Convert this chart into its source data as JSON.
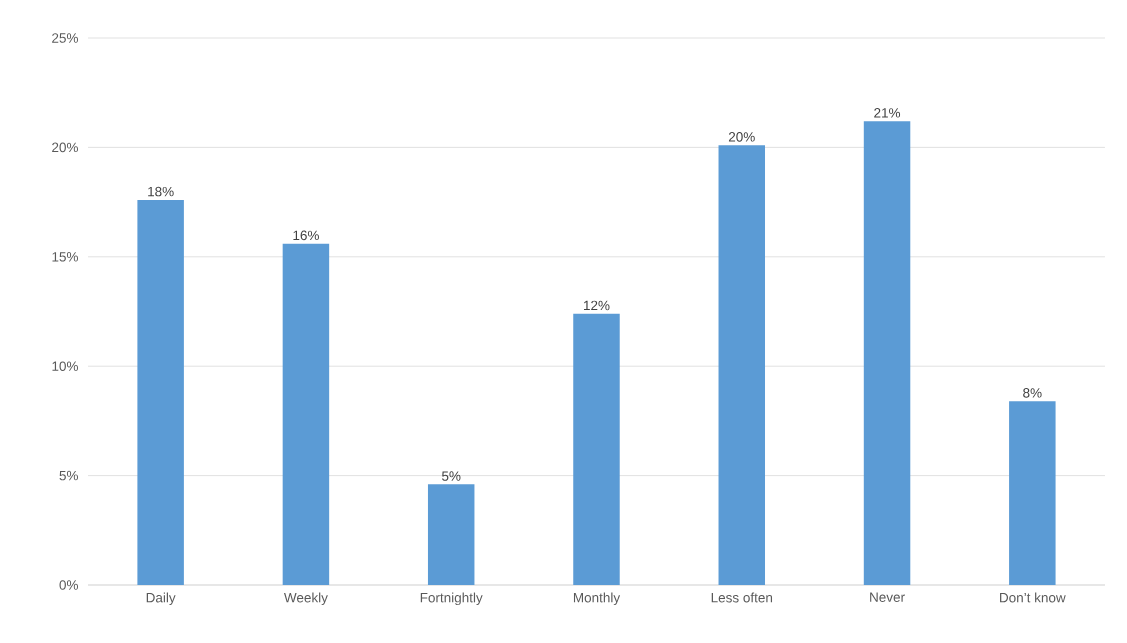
{
  "chart_data": {
    "type": "bar",
    "categories": [
      "Daily",
      "Weekly",
      "Fortnightly",
      "Monthly",
      "Less often",
      "Never",
      "Don’t know"
    ],
    "values": [
      17.6,
      15.6,
      4.6,
      12.4,
      20.1,
      21.2,
      8.4
    ],
    "value_labels": [
      "18%",
      "16%",
      "5%",
      "12%",
      "20%",
      "21%",
      "8%"
    ],
    "color": "#5b9bd5",
    "ylim": [
      0,
      25
    ],
    "yticks": [
      {
        "value": 0,
        "label": "0%"
      },
      {
        "value": 5,
        "label": "5%"
      },
      {
        "value": 10,
        "label": "10%"
      },
      {
        "value": 15,
        "label": "15%"
      },
      {
        "value": 20,
        "label": "20%"
      },
      {
        "value": 25,
        "label": "25%"
      }
    ],
    "grid": "y"
  }
}
